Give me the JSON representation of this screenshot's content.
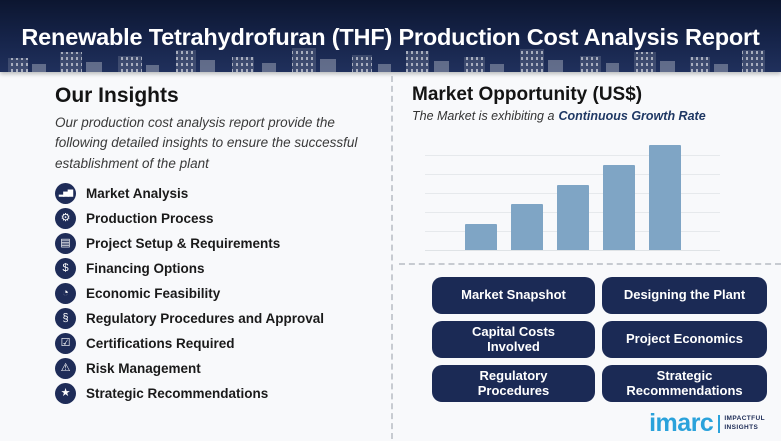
{
  "header": {
    "title": "Renewable Tetrahydrofuran (THF) Production Cost Analysis Report"
  },
  "insights": {
    "heading": "Our Insights",
    "description": "Our production cost analysis report provide the following detailed insights to ensure the successful establishment of the plant",
    "items": [
      {
        "label": "Market Analysis",
        "icon": "bar-chart-icon",
        "glyph": "▂▅▇"
      },
      {
        "label": "Production Process",
        "icon": "gear-icon",
        "glyph": "⚙"
      },
      {
        "label": "Project Setup & Requirements",
        "icon": "document-icon",
        "glyph": "▤"
      },
      {
        "label": "Financing Options",
        "icon": "money-icon",
        "glyph": "$"
      },
      {
        "label": "Economic Feasibility",
        "icon": "pie-chart-icon",
        "glyph": "◔"
      },
      {
        "label": "Regulatory Procedures and Approval",
        "icon": "legal-section-icon",
        "glyph": "§"
      },
      {
        "label": "Certifications Required",
        "icon": "checklist-icon",
        "glyph": "☑"
      },
      {
        "label": "Risk Management",
        "icon": "warning-icon",
        "glyph": "⚠"
      },
      {
        "label": "Strategic Recommendations",
        "icon": "idea-icon",
        "glyph": "★"
      }
    ]
  },
  "market": {
    "heading": "Market Opportunity (US$)",
    "subtitle_plain": "The Market is exhibiting a",
    "subtitle_bold": "Continuous Growth Rate"
  },
  "chart_data": {
    "type": "bar",
    "categories": [
      "",
      "",
      "",
      "",
      ""
    ],
    "values": [
      25,
      44,
      63,
      82,
      101
    ],
    "title": "Market Opportunity (US$)",
    "xlabel": "",
    "ylabel": "",
    "grid": true,
    "legend": false,
    "bar_color": "#7fa5c5"
  },
  "buttons": [
    {
      "label": "Market Snapshot"
    },
    {
      "label": "Designing the Plant"
    },
    {
      "label": "Capital Costs Involved"
    },
    {
      "label": "Project Economics"
    },
    {
      "label": "Regulatory Procedures"
    },
    {
      "label": "Strategic Recommendations"
    }
  ],
  "logo": {
    "brand": "imarc",
    "tagline_line1": "IMPACTFUL",
    "tagline_line2": "INSIGHTS"
  },
  "colors": {
    "header_navy": "#16244a",
    "button_navy": "#1b2a55",
    "icon_navy": "#1e2c58",
    "bar_blue": "#7fa5c5",
    "brand_blue": "#2aa2db",
    "subtitle_navy": "#1f3864"
  }
}
